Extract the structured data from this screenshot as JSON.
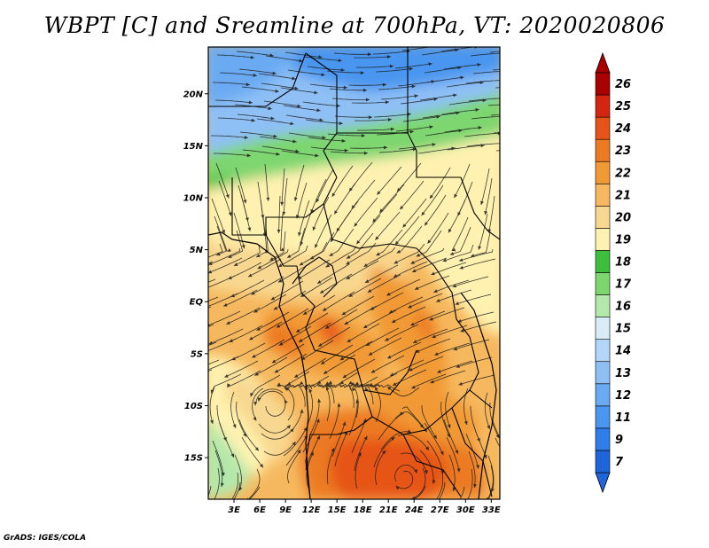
{
  "title": "WBPT [C] and Sreamline at 700hPa, VT: 2020020806",
  "credit": "GrADS: IGES/COLA",
  "map": {
    "lat_labels": [
      "20N",
      "15N",
      "10N",
      "5N",
      "EQ",
      "5S",
      "10S",
      "15S"
    ],
    "lat_values": [
      20,
      15,
      10,
      5,
      0,
      -5,
      -10,
      -15
    ],
    "lon_labels": [
      "3E",
      "6E",
      "9E",
      "12E",
      "15E",
      "18E",
      "21E",
      "24E",
      "27E",
      "30E",
      "33E"
    ],
    "lon_values": [
      3,
      6,
      9,
      12,
      15,
      18,
      21,
      24,
      27,
      30,
      33
    ],
    "lat_range": [
      -19,
      24.5
    ],
    "lon_range": [
      0,
      34
    ]
  },
  "colorbar": {
    "labels": [
      "7",
      "9",
      "11",
      "12",
      "13",
      "14",
      "15",
      "16",
      "17",
      "18",
      "19",
      "20",
      "21",
      "22",
      "23",
      "24",
      "25",
      "26"
    ],
    "colors": [
      "#1f64d9",
      "#2f7ee8",
      "#4a96f0",
      "#6aaaf2",
      "#8ec0f5",
      "#b2d5f8",
      "#d8ecf6",
      "#b4e8aa",
      "#7ed66f",
      "#3cbf3c",
      "#fff2b0",
      "#f8d890",
      "#f6b85e",
      "#f19a35",
      "#ec7a22",
      "#e65418",
      "#d22610",
      "#a80000"
    ]
  }
}
